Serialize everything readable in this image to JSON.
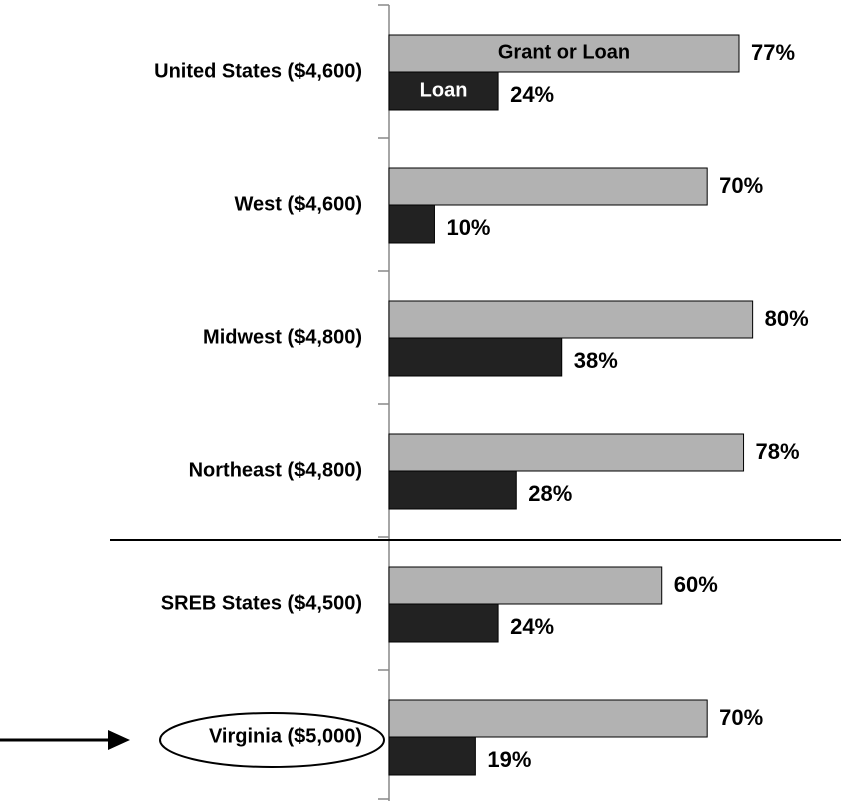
{
  "chart_data": {
    "type": "bar",
    "orientation": "horizontal",
    "categories": [
      "United States ($4,600)",
      "West ($4,600)",
      "Midwest ($4,800)",
      "Northeast ($4,800)",
      "SREB States ($4,500)",
      "Virginia ($5,000)"
    ],
    "series": [
      {
        "name": "Grant or Loan",
        "color": "#b2b2b2",
        "values": [
          77,
          70,
          80,
          78,
          60,
          70
        ],
        "value_labels": [
          "77%",
          "70%",
          "80%",
          "78%",
          "60%",
          "70%"
        ]
      },
      {
        "name": "Loan",
        "color": "#222222",
        "values": [
          24,
          10,
          38,
          28,
          24,
          19
        ],
        "value_labels": [
          "24%",
          "10%",
          "38%",
          "28%",
          "24%",
          "19%"
        ]
      }
    ]
  }
}
